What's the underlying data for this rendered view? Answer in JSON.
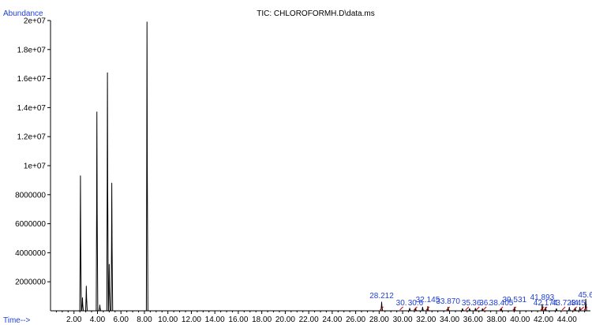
{
  "colors": {
    "trace": "#000000",
    "axis": "#000000",
    "axis_label": "#1f3fd6",
    "peak_label": "#1f3fd6",
    "peak_marker": "#d40000",
    "background": "#ffffff"
  },
  "chart_data": {
    "type": "line",
    "title": "TIC: CHLOROFORMH.D\\data.ms",
    "ylabel": "Abundance",
    "xlabel": "Time-->",
    "xlim": [
      0.0,
      46.0
    ],
    "ylim": [
      0,
      20000000
    ],
    "grid": false,
    "x_ticks": [
      2,
      4,
      6,
      8,
      10,
      12,
      14,
      16,
      18,
      20,
      22,
      24,
      26,
      28,
      30,
      32,
      34,
      36,
      38,
      40,
      42,
      44
    ],
    "x_tick_labels": [
      "2.00",
      "4.00",
      "6.00",
      "8.00",
      "10.00",
      "12.00",
      "14.00",
      "16.00",
      "18.00",
      "20.00",
      "22.00",
      "24.00",
      "26.00",
      "28.00",
      "30.00",
      "32.00",
      "34.00",
      "36.00",
      "38.00",
      "40.00",
      "42.00",
      "44.00"
    ],
    "y_ticks": [
      2000000,
      4000000,
      6000000,
      8000000,
      10000000,
      12000000,
      14000000,
      16000000,
      18000000,
      20000000
    ],
    "y_tick_labels": [
      "2000000",
      "4000000",
      "6000000",
      "8000000",
      "1e+07",
      "1.2e+07",
      "1.4e+07",
      "1.6e+07",
      "1.8e+07",
      "2e+07"
    ],
    "series": [
      {
        "peaks": [
          {
            "x": 2.55,
            "y": 9300000
          },
          {
            "x": 2.72,
            "y": 900000
          },
          {
            "x": 3.05,
            "y": 1700000
          },
          {
            "x": 3.95,
            "y": 13700000
          },
          {
            "x": 4.2,
            "y": 400000
          },
          {
            "x": 4.85,
            "y": 16400000
          },
          {
            "x": 5.0,
            "y": 3200000
          },
          {
            "x": 5.22,
            "y": 8800000
          },
          {
            "x": 8.22,
            "y": 19900000
          },
          {
            "x": 28.212,
            "y": 600000
          },
          {
            "x": 30.6,
            "y": 180000
          },
          {
            "x": 31.1,
            "y": 200000
          },
          {
            "x": 31.7,
            "y": 250000
          },
          {
            "x": 32.145,
            "y": 300000
          },
          {
            "x": 33.87,
            "y": 250000
          },
          {
            "x": 35.1,
            "y": 150000
          },
          {
            "x": 35.7,
            "y": 160000
          },
          {
            "x": 36.2,
            "y": 170000
          },
          {
            "x": 36.8,
            "y": 150000
          },
          {
            "x": 38.405,
            "y": 170000
          },
          {
            "x": 39.531,
            "y": 250000
          },
          {
            "x": 41.893,
            "y": 450000
          },
          {
            "x": 42.174,
            "y": 250000
          },
          {
            "x": 43.1,
            "y": 150000
          },
          {
            "x": 44.2,
            "y": 250000
          },
          {
            "x": 44.7,
            "y": 200000
          },
          {
            "x": 45.1,
            "y": 250000
          },
          {
            "x": 45.6,
            "y": 800000
          }
        ]
      }
    ],
    "annotations": [
      {
        "text": "28.212",
        "x": 28.212
      },
      {
        "text": "30.",
        "x": 29.9
      },
      {
        "text": "30.6",
        "x": 31.1
      },
      {
        "text": "32.145",
        "x": 32.145
      },
      {
        "text": "33.870",
        "x": 33.87
      },
      {
        "text": "35.",
        "x": 35.5
      },
      {
        "text": "36.",
        "x": 36.4
      },
      {
        "text": "36.",
        "x": 37.0
      },
      {
        "text": "38.405",
        "x": 38.405
      },
      {
        "text": "39.531",
        "x": 39.531
      },
      {
        "text": "41.893",
        "x": 41.893
      },
      {
        "text": "42.174",
        "x": 42.174
      },
      {
        "text": "43.723",
        "x": 43.723
      },
      {
        "text": "44.",
        "x": 44.7
      },
      {
        "text": "45.",
        "x": 45.3
      },
      {
        "text": "45.6",
        "x": 45.6
      }
    ]
  }
}
